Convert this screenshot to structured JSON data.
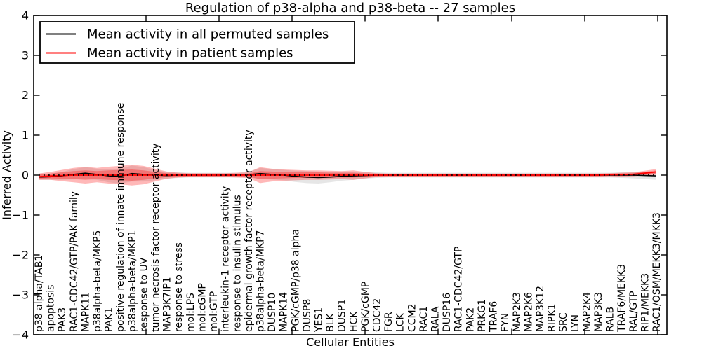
{
  "figure": {
    "background": "#ffffff"
  },
  "chart_data": {
    "type": "line",
    "title": "Regulation of p38-alpha and p38-beta -- 27 samples",
    "xlabel": "Cellular Entities",
    "ylabel": "Inferred Activity",
    "ylim": [
      -4,
      4
    ],
    "ytick_values": [
      4,
      3,
      2,
      1,
      0,
      -1,
      -2,
      -3,
      -4
    ],
    "ytick_labels": [
      "4",
      "3",
      "2",
      "1",
      "0",
      "−1",
      "−2",
      "−3",
      "−4"
    ],
    "grid": false,
    "legend_position": "upper left",
    "zero_line": {
      "style": "dotted",
      "color": "#000000",
      "y": 0
    },
    "categories": [
      "p38 alpha/TAB1",
      "apoptosis",
      "PAK3",
      "RAC1-CDC42/GTP/PAK family",
      "MAPK11",
      "p38alpha-beta/MKP5",
      "PAK1",
      "positive regulation of innate immune response",
      "p38alpha-beta/MKP1",
      "response to UV",
      "tumor necrosis factor receptor activity",
      "MAP3K7IP1",
      "response to stress",
      "mol:LPS",
      "mol:cGMP",
      "mol:GTP",
      "interleukin-1 receptor activity",
      "response to insulin stimulus",
      "epidermal growth factor receptor activity",
      "p38alpha-beta/MKP7",
      "DUSP10",
      "MAPK14",
      "PGK/cGMP/p38 alpha",
      "DUSP8",
      "YES1",
      "BLK",
      "DUSP1",
      "HCK",
      "PGK/cGMP",
      "CDC42",
      "FGR",
      "LCK",
      "CCM2",
      "RAC1",
      "RALA",
      "DUSP16",
      "RAC1-CDC42/GTP",
      "PAK2",
      "PRKG1",
      "TRAF6",
      "FYN",
      "MAP2K3",
      "MAP2K6",
      "MAP3K12",
      "RIPK1",
      "SRC",
      "LYN",
      "MAP2K4",
      "MAP3K3",
      "RALB",
      "TRAF6/MEKK3",
      "RAL/GTP",
      "RIP1/MEKK3",
      "RAC1/OSM/MEKK3/MKK3"
    ],
    "series": [
      {
        "name": "Mean activity in all permuted samples",
        "color": "#000000",
        "values": [
          -0.05,
          -0.04,
          -0.02,
          0.02,
          0.05,
          0.02,
          -0.02,
          -0.03,
          0.04,
          0.02,
          0.0,
          -0.01,
          0.0,
          0.0,
          0.0,
          0.0,
          0.0,
          0.0,
          0.01,
          0.04,
          0.02,
          0.0,
          -0.03,
          -0.05,
          -0.06,
          -0.05,
          -0.03,
          -0.02,
          -0.01,
          0.0,
          0.0,
          0.0,
          0.0,
          0.0,
          0.0,
          0.0,
          0.0,
          0.0,
          0.0,
          0.0,
          0.0,
          0.0,
          0.0,
          0.0,
          0.0,
          0.0,
          0.0,
          0.0,
          0.0,
          0.0,
          0.0,
          0.0,
          -0.01,
          -0.02
        ]
      },
      {
        "name": "Mean activity in patient samples",
        "color": "#ff0000",
        "values": [
          -0.04,
          -0.02,
          -0.01,
          0.0,
          0.0,
          0.0,
          0.0,
          0.0,
          0.0,
          0.0,
          0.0,
          0.0,
          0.0,
          0.0,
          0.0,
          0.0,
          0.0,
          0.0,
          0.0,
          0.0,
          0.0,
          0.0,
          0.0,
          0.0,
          0.0,
          0.0,
          0.0,
          0.0,
          0.0,
          0.0,
          0.0,
          0.0,
          0.0,
          0.0,
          0.0,
          0.0,
          0.0,
          0.0,
          0.0,
          0.0,
          0.0,
          0.0,
          0.0,
          0.0,
          0.0,
          0.0,
          0.0,
          0.0,
          0.0,
          0.01,
          0.01,
          0.02,
          0.05,
          0.08
        ]
      }
    ],
    "bands": [
      {
        "name": "permuted-samples-spread",
        "center_series": 0,
        "color": "#666666",
        "opacity": 0.16,
        "halfwidth": [
          0.07,
          0.08,
          0.1,
          0.13,
          0.15,
          0.14,
          0.16,
          0.18,
          0.2,
          0.18,
          0.13,
          0.08,
          0.07,
          0.06,
          0.06,
          0.06,
          0.06,
          0.06,
          0.07,
          0.14,
          0.13,
          0.13,
          0.14,
          0.15,
          0.15,
          0.13,
          0.11,
          0.1,
          0.08,
          0.07,
          0.06,
          0.06,
          0.06,
          0.06,
          0.06,
          0.06,
          0.06,
          0.06,
          0.06,
          0.06,
          0.06,
          0.06,
          0.06,
          0.06,
          0.06,
          0.06,
          0.06,
          0.06,
          0.06,
          0.06,
          0.07,
          0.08,
          0.09,
          0.1
        ]
      },
      {
        "name": "patient-samples-spread-outer",
        "center_series": 1,
        "color": "#ff0000",
        "opacity": 0.28,
        "halfwidth": [
          0.08,
          0.1,
          0.14,
          0.18,
          0.21,
          0.18,
          0.21,
          0.23,
          0.26,
          0.23,
          0.16,
          0.09,
          0.06,
          0.05,
          0.05,
          0.05,
          0.05,
          0.06,
          0.07,
          0.2,
          0.16,
          0.14,
          0.13,
          0.12,
          0.12,
          0.11,
          0.1,
          0.12,
          0.08,
          0.05,
          0.04,
          0.04,
          0.04,
          0.04,
          0.04,
          0.04,
          0.04,
          0.04,
          0.04,
          0.04,
          0.04,
          0.04,
          0.04,
          0.04,
          0.04,
          0.04,
          0.04,
          0.04,
          0.04,
          0.04,
          0.05,
          0.05,
          0.06,
          0.07
        ]
      },
      {
        "name": "patient-samples-spread-inner",
        "center_series": 1,
        "color": "#ff0000",
        "opacity": 0.3,
        "halfwidth": [
          0.05,
          0.06,
          0.08,
          0.1,
          0.12,
          0.1,
          0.12,
          0.13,
          0.14,
          0.12,
          0.08,
          0.05,
          0.04,
          0.03,
          0.03,
          0.03,
          0.03,
          0.03,
          0.04,
          0.1,
          0.09,
          0.08,
          0.07,
          0.07,
          0.07,
          0.06,
          0.06,
          0.06,
          0.04,
          0.03,
          0.025,
          0.025,
          0.025,
          0.025,
          0.025,
          0.025,
          0.025,
          0.025,
          0.025,
          0.025,
          0.025,
          0.025,
          0.025,
          0.025,
          0.025,
          0.025,
          0.025,
          0.025,
          0.025,
          0.025,
          0.03,
          0.03,
          0.035,
          0.04
        ]
      }
    ]
  }
}
